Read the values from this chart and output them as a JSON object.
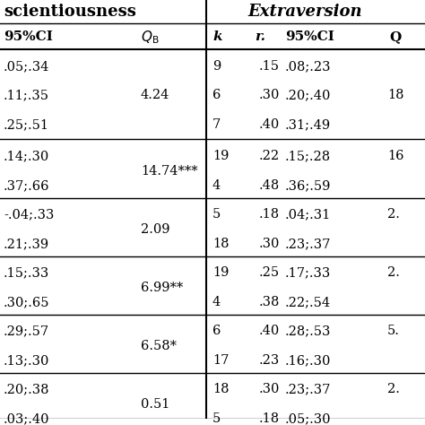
{
  "background_color": "#ffffff",
  "section_header_left": "scientiousness",
  "section_header_right": "Extraversion",
  "col_header_ci_left": "95%CI",
  "col_header_qb": "Q_B",
  "col_header_k": "k",
  "col_header_r": "r.",
  "col_header_ci_right": "95%CI",
  "col_header_q": "Q",
  "row_groups": [
    {
      "ci_left": [
        ".05;.34",
        ".11;.35",
        ".25;.51"
      ],
      "qb": "4.24",
      "k": [
        "9",
        "6",
        "7"
      ],
      "r": [
        ".15",
        ".30",
        ".40"
      ],
      "ci_right": [
        ".08;.23",
        ".20;.40",
        ".31;.49"
      ],
      "q": [
        "",
        "18",
        ""
      ]
    },
    {
      "ci_left": [
        ".14;.30",
        ".37;.66"
      ],
      "qb": "14.74***",
      "k": [
        "19",
        "4"
      ],
      "r": [
        ".22",
        ".48"
      ],
      "ci_right": [
        ".15;.28",
        ".36;.59"
      ],
      "q": [
        "16",
        ""
      ]
    },
    {
      "ci_left": [
        "-.04;.33",
        ".21;.39"
      ],
      "qb": "2.09",
      "k": [
        "5",
        "18"
      ],
      "r": [
        ".18",
        ".30"
      ],
      "ci_right": [
        ".04;.31",
        ".23;.37"
      ],
      "q": [
        "2.",
        ""
      ]
    },
    {
      "ci_left": [
        ".15;.33",
        ".30;.65"
      ],
      "qb": "6.99**",
      "k": [
        "19",
        "4"
      ],
      "r": [
        ".25",
        ".38"
      ],
      "ci_right": [
        ".17;.33",
        ".22;.54"
      ],
      "q": [
        "2.",
        ""
      ]
    },
    {
      "ci_left": [
        ".29;.57",
        ".13;.30"
      ],
      "qb": "6.58*",
      "k": [
        "6",
        "17"
      ],
      "r": [
        ".40",
        ".23"
      ],
      "ci_right": [
        ".28;.53",
        ".16;.30"
      ],
      "q": [
        "5.",
        ""
      ]
    },
    {
      "ci_left": [
        ".20;.38",
        ".03;.40"
      ],
      "qb": "0.51",
      "k": [
        "18",
        "5"
      ],
      "r": [
        ".30",
        ".18"
      ],
      "ci_right": [
        ".23;.37",
        ".05;.30"
      ],
      "q": [
        "2.",
        ""
      ]
    }
  ]
}
